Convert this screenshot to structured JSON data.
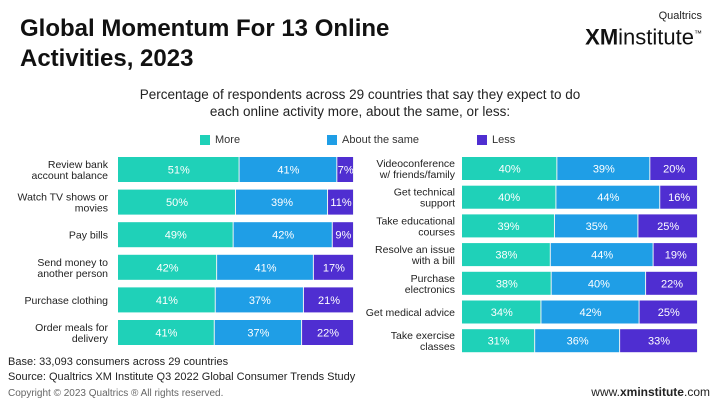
{
  "header": {
    "title": "Global Momentum For 13 Online Activities, 2023",
    "subtitle": "Percentage of respondents across 29 countries that say they expect to do each online activity more, about the same, or less:"
  },
  "logo": {
    "top": "Qualtrics",
    "xm": "XM",
    "institute": "institute",
    "tm": "™"
  },
  "legend": [
    {
      "label": "More",
      "color": "#1fd1b8"
    },
    {
      "label": "About the same",
      "color": "#1f9ee6"
    },
    {
      "label": "Less",
      "color": "#4f2ed1"
    }
  ],
  "chart_data": [
    {
      "type": "bar",
      "stacked": true,
      "orientation": "horizontal",
      "categories": [
        [
          "Review bank",
          "account balance"
        ],
        [
          "Watch TV shows or",
          "movies"
        ],
        [
          "Pay bills"
        ],
        [
          "Send money to",
          "another person"
        ],
        [
          "Purchase clothing"
        ],
        [
          "Order meals for",
          "delivery"
        ]
      ],
      "series": [
        {
          "name": "More",
          "values": [
            51,
            50,
            49,
            42,
            41,
            41
          ]
        },
        {
          "name": "About the same",
          "values": [
            41,
            39,
            42,
            41,
            37,
            37
          ]
        },
        {
          "name": "Less",
          "values": [
            7,
            11,
            9,
            17,
            21,
            22
          ]
        }
      ]
    },
    {
      "type": "bar",
      "stacked": true,
      "orientation": "horizontal",
      "categories": [
        [
          "Videoconference",
          "w/ friends/family"
        ],
        [
          "Get technical",
          "support"
        ],
        [
          "Take educational",
          "courses"
        ],
        [
          "Resolve an issue",
          "with a bill"
        ],
        [
          "Purchase",
          "electronics"
        ],
        [
          "Get medical advice"
        ],
        [
          "Take exercise",
          "classes"
        ]
      ],
      "series": [
        {
          "name": "More",
          "values": [
            40,
            40,
            39,
            38,
            38,
            34,
            31
          ]
        },
        {
          "name": "About the same",
          "values": [
            39,
            44,
            35,
            44,
            40,
            42,
            36
          ]
        },
        {
          "name": "Less",
          "values": [
            20,
            16,
            25,
            19,
            22,
            25,
            33
          ]
        }
      ]
    }
  ],
  "footer": {
    "base": "Base: 33,093 consumers across 29 countries",
    "source": "Source: Qualtrics XM Institute Q3 2022 Global Consumer Trends Study",
    "copyright": "Copyright © 2023 Qualtrics ® All rights reserved.",
    "website_prefix": "www.",
    "website_bold": "xminstitute",
    "website_suffix": ".com"
  }
}
